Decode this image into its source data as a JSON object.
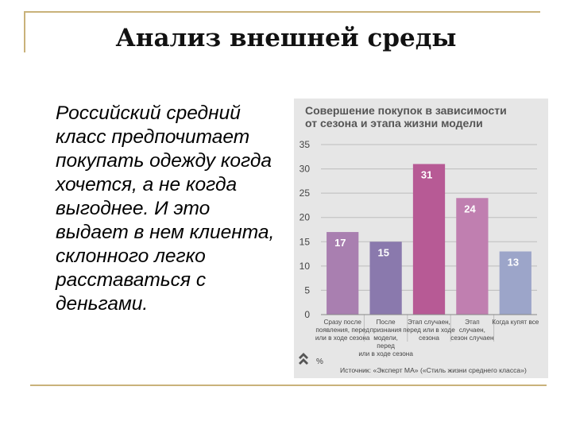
{
  "slide": {
    "title": "Анализ внешней среды",
    "text": " Российский средний класс предпочитает покупать одежду когда хочется, а не когда выгоднее. И это выдает в нем клиента, склонного легко расставаться с деньгами."
  },
  "colors": {
    "frame": "#c9b27a",
    "bars": [
      "#a97fb0",
      "#8a79ad",
      "#b75a95",
      "#c07fb0",
      "#9ca5c9"
    ]
  },
  "chart_data": {
    "type": "bar",
    "title_lines": [
      "Совершение покупок в зависимости",
      "от сезона и этапа жизни модели"
    ],
    "unit": "%",
    "categories": [
      [
        "Сразу после",
        "появления, перед",
        "или в ходе сезона"
      ],
      [
        "После",
        "признания",
        "модели,",
        "перед",
        "или в ходе сезона"
      ],
      [
        "Этап случаен,",
        "перед или в ходе",
        "сезона"
      ],
      [
        "Этап",
        "случаен,",
        "сезон случаен"
      ],
      [
        "Когда купят все"
      ]
    ],
    "values": [
      17,
      15,
      31,
      24,
      13
    ],
    "yticks": [
      0,
      5,
      10,
      15,
      20,
      25,
      30,
      35
    ],
    "ylim": [
      0,
      35
    ],
    "grid": true,
    "source": "Источник: «Эксперт МА» («Стиль жизни среднего класса»)"
  }
}
